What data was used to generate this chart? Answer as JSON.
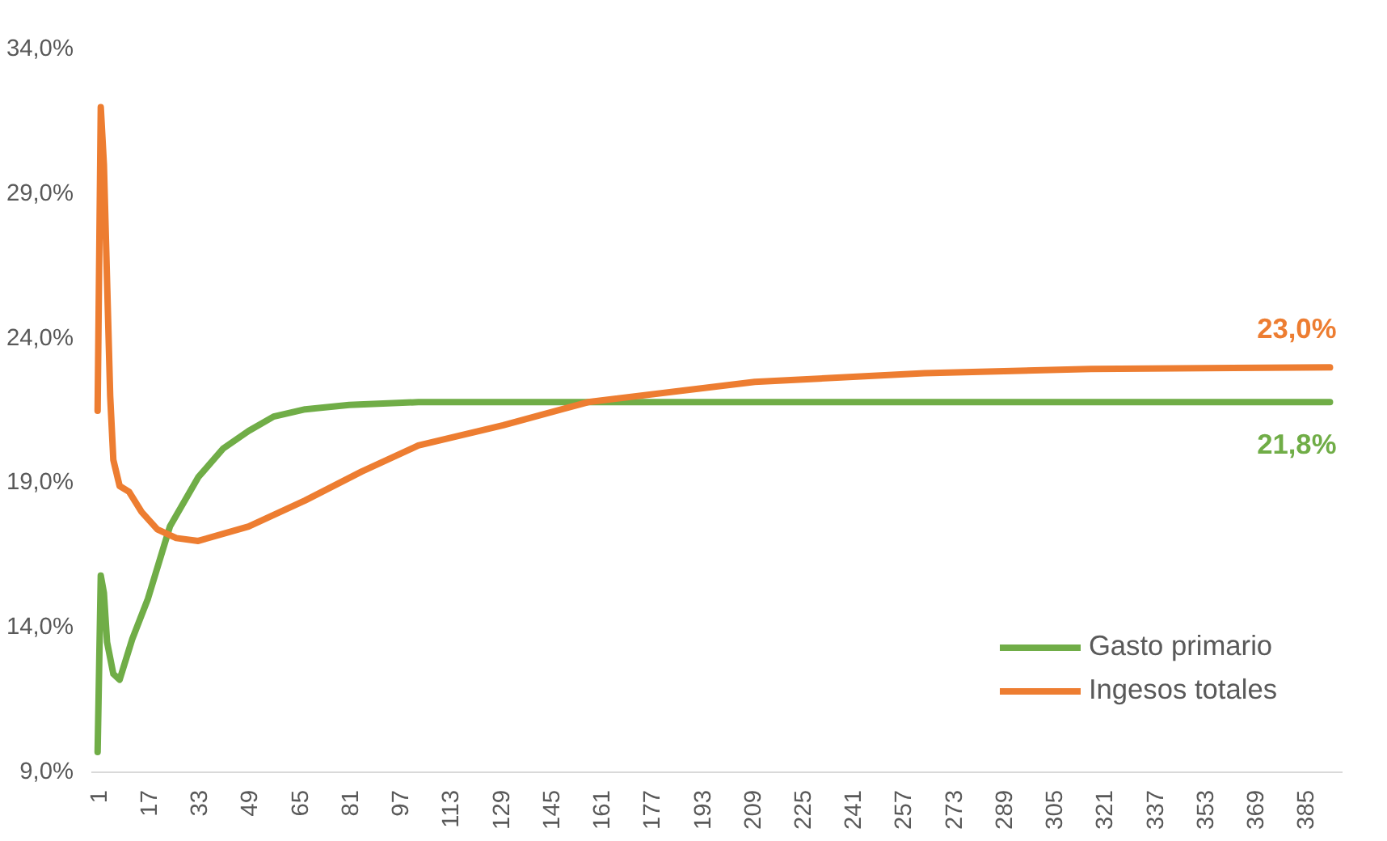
{
  "chart_data": {
    "type": "line",
    "xlim": [
      -1,
      397
    ],
    "ylim": [
      9,
      34
    ],
    "xticks": [
      1,
      17,
      33,
      49,
      65,
      81,
      97,
      113,
      129,
      145,
      161,
      177,
      193,
      209,
      225,
      241,
      257,
      273,
      289,
      305,
      321,
      337,
      353,
      369,
      385
    ],
    "yticks": [
      {
        "value": 9,
        "label": "9,0%"
      },
      {
        "value": 14,
        "label": "14,0%"
      },
      {
        "value": 19,
        "label": "19,0%"
      },
      {
        "value": 24,
        "label": "24,0%"
      },
      {
        "value": 29,
        "label": "29,0%"
      },
      {
        "value": 34,
        "label": "34,0%"
      }
    ],
    "grid": false,
    "legend": "bottom right",
    "marker": "none",
    "line_style": "solid",
    "series": [
      {
        "name": "Gasto primario",
        "color": "#70ad47",
        "x": [
          1,
          2,
          3,
          4,
          6,
          8,
          12,
          17,
          24,
          33,
          41,
          49,
          57,
          67,
          81,
          103,
          393
        ],
        "values": [
          9.7,
          15.8,
          15.2,
          13.5,
          12.4,
          12.2,
          13.6,
          15.0,
          17.5,
          19.2,
          20.2,
          20.8,
          21.3,
          21.55,
          21.7,
          21.8,
          21.8
        ],
        "value_labels": [
          null,
          null,
          null,
          null,
          null,
          null,
          null,
          null,
          null,
          null,
          null,
          null,
          null,
          null,
          null,
          null,
          "21,8%"
        ]
      },
      {
        "name": "Ingesos totales",
        "color": "#ed7d31",
        "x": [
          1,
          2,
          3,
          4,
          5,
          6,
          8,
          11,
          15,
          20,
          26,
          33,
          49,
          67,
          85,
          103,
          130,
          157,
          210,
          264,
          317,
          393
        ],
        "values": [
          21.5,
          32.0,
          30.0,
          26.0,
          22.0,
          19.8,
          18.9,
          18.7,
          18.0,
          17.4,
          17.1,
          17.0,
          17.5,
          18.4,
          19.4,
          20.3,
          21.0,
          21.8,
          22.5,
          22.8,
          22.95,
          23.0
        ],
        "value_labels": [
          null,
          null,
          null,
          null,
          null,
          null,
          null,
          null,
          null,
          null,
          null,
          null,
          null,
          null,
          null,
          null,
          null,
          null,
          null,
          null,
          null,
          "23,0%"
        ]
      }
    ]
  }
}
